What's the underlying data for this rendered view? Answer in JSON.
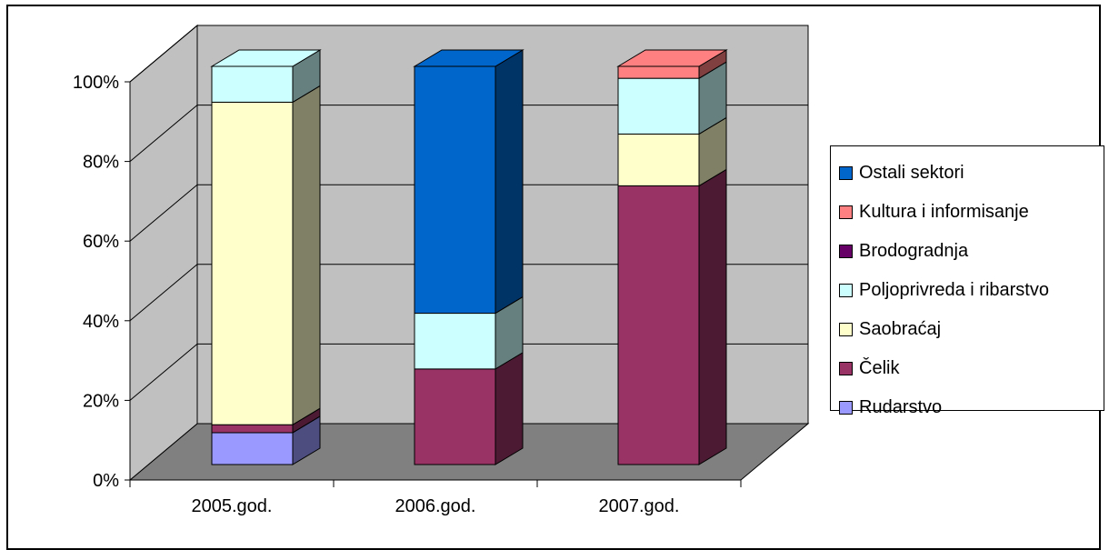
{
  "chart_data": {
    "type": "bar",
    "stacked": true,
    "percent": true,
    "three_d": true,
    "categories": [
      "2005.god.",
      "2006.god.",
      "2007.god."
    ],
    "series": [
      {
        "name": "Rudarstvo",
        "color": "#9999FF",
        "values": [
          8,
          0,
          0
        ]
      },
      {
        "name": "Čelik",
        "color": "#993366",
        "values": [
          2,
          24,
          70
        ]
      },
      {
        "name": "Saobraćaj",
        "color": "#FFFFCC",
        "values": [
          81,
          0,
          13
        ]
      },
      {
        "name": "Poljoprivreda i ribarstvo",
        "color": "#CCFFFF",
        "values": [
          9,
          14,
          14
        ]
      },
      {
        "name": "Brodogradnja",
        "color": "#660066",
        "values": [
          0,
          0,
          0
        ]
      },
      {
        "name": "Kultura i informisanje",
        "color": "#FF8080",
        "values": [
          0,
          0,
          3
        ]
      },
      {
        "name": "Ostali sektori",
        "color": "#0066CC",
        "values": [
          0,
          62,
          0
        ]
      }
    ],
    "yaxis": {
      "ticks": [
        "0%",
        "20%",
        "40%",
        "60%",
        "80%",
        "100%"
      ],
      "range": [
        0,
        100
      ]
    },
    "grid": true,
    "legend_position": "right",
    "legend_order": [
      "Ostali sektori",
      "Kultura i informisanje",
      "Brodogradnja",
      "Poljoprivreda i ribarstvo",
      "Saobraćaj",
      "Čelik",
      "Rudarstvo"
    ],
    "wall_color": "#C0C0C0",
    "floor_color": "#808080"
  }
}
